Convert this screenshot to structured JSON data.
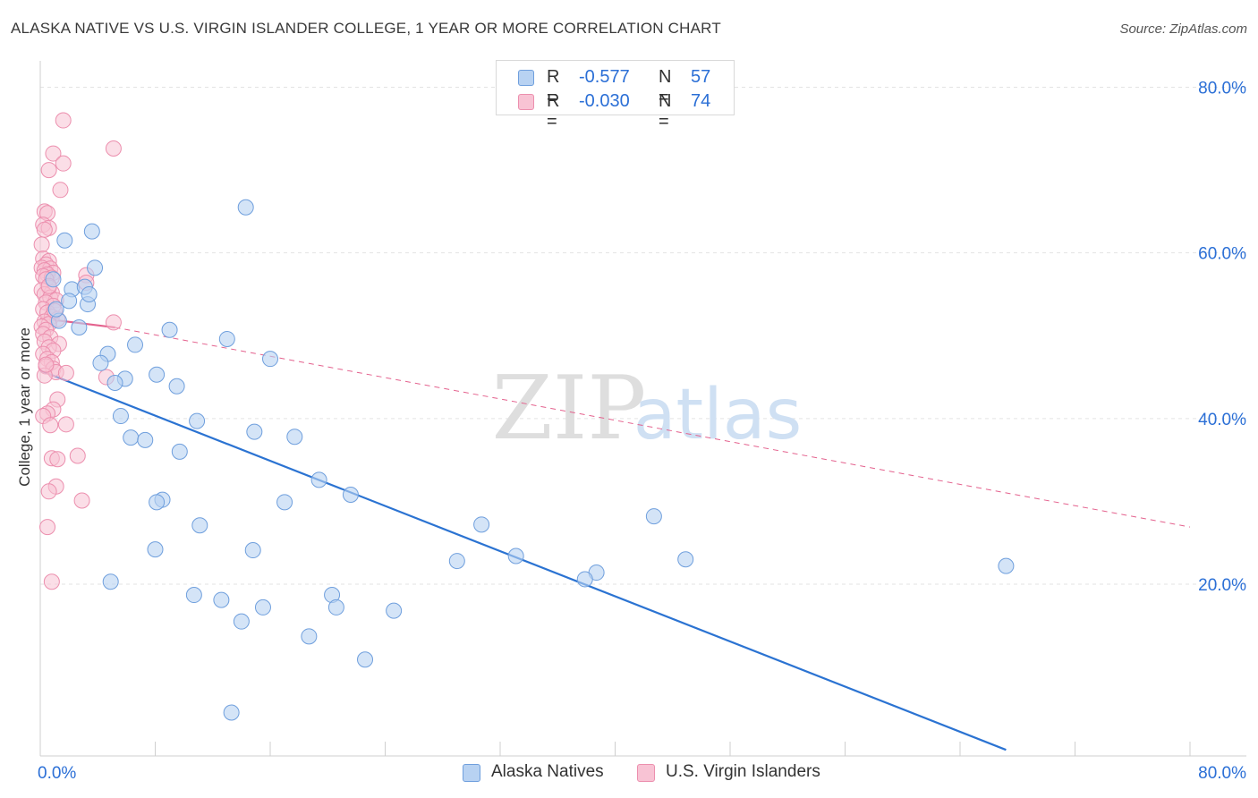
{
  "title": "ALASKA NATIVE VS U.S. VIRGIN ISLANDER COLLEGE, 1 YEAR OR MORE CORRELATION CHART",
  "source": "Source: ZipAtlas.com",
  "watermark": {
    "zip": "ZIP",
    "atlas": "atlas"
  },
  "legend": {
    "series1": {
      "r_label": "R =",
      "r_value": "-0.577",
      "n_label": "N =",
      "n_value": "57"
    },
    "series2": {
      "r_label": "R =",
      "r_value": "-0.030",
      "n_label": "N =",
      "n_value": "74"
    }
  },
  "bottom_legend": {
    "series1": "Alaska Natives",
    "series2": "U.S. Virgin Islanders"
  },
  "chart_data": {
    "type": "scatter",
    "title": "ALASKA NATIVE VS U.S. VIRGIN ISLANDER COLLEGE, 1 YEAR OR MORE CORRELATION CHART",
    "xlabel": "",
    "ylabel": "College, 1 year or more",
    "xlim": [
      0,
      80
    ],
    "ylim": [
      0,
      80
    ],
    "x_tick_labels": [
      "0.0%",
      "80.0%"
    ],
    "y_ticks": [
      20,
      40,
      60,
      80
    ],
    "y_tick_labels": [
      "20.0%",
      "40.0%",
      "60.0%",
      "80.0%"
    ],
    "grid": true,
    "colors": {
      "series1_fill": "#b8d2f2",
      "series1_stroke": "#6f9fdd",
      "series1_line": "#2b73d2",
      "series2_fill": "#f8c3d4",
      "series2_stroke": "#ec8fae",
      "series2_line": "#e4628e",
      "value_text": "#2b6fd6",
      "grid": "#e3e3e3"
    },
    "series": [
      {
        "name": "Alaska Natives",
        "R": -0.577,
        "N": 57,
        "trend": {
          "x": [
            0,
            67.2
          ],
          "y": [
            45.8,
            0
          ]
        },
        "points": [
          [
            14.3,
            65.5
          ],
          [
            3.6,
            62.6
          ],
          [
            1.7,
            61.5
          ],
          [
            3.8,
            58.2
          ],
          [
            2.2,
            55.6
          ],
          [
            3.1,
            55.9
          ],
          [
            3.3,
            53.8
          ],
          [
            2.0,
            54.2
          ],
          [
            1.3,
            51.8
          ],
          [
            2.7,
            51.0
          ],
          [
            9.0,
            50.7
          ],
          [
            13.0,
            49.6
          ],
          [
            6.6,
            48.9
          ],
          [
            4.7,
            47.8
          ],
          [
            16.0,
            47.2
          ],
          [
            4.2,
            46.7
          ],
          [
            8.1,
            45.3
          ],
          [
            5.9,
            44.8
          ],
          [
            5.2,
            44.3
          ],
          [
            9.5,
            43.9
          ],
          [
            5.6,
            40.3
          ],
          [
            10.9,
            39.7
          ],
          [
            14.9,
            38.4
          ],
          [
            17.7,
            37.8
          ],
          [
            6.3,
            37.7
          ],
          [
            7.3,
            37.4
          ],
          [
            9.7,
            36.0
          ],
          [
            19.4,
            32.6
          ],
          [
            21.6,
            30.8
          ],
          [
            8.5,
            30.2
          ],
          [
            8.1,
            29.9
          ],
          [
            17.0,
            29.9
          ],
          [
            42.7,
            28.2
          ],
          [
            30.7,
            27.2
          ],
          [
            11.1,
            27.1
          ],
          [
            8.0,
            24.2
          ],
          [
            14.8,
            24.1
          ],
          [
            33.1,
            23.4
          ],
          [
            29.0,
            22.8
          ],
          [
            44.9,
            23.0
          ],
          [
            67.2,
            22.2
          ],
          [
            38.7,
            21.4
          ],
          [
            37.9,
            20.6
          ],
          [
            4.9,
            20.3
          ],
          [
            10.7,
            18.7
          ],
          [
            20.3,
            18.7
          ],
          [
            12.6,
            18.1
          ],
          [
            15.5,
            17.2
          ],
          [
            20.6,
            17.2
          ],
          [
            24.6,
            16.8
          ],
          [
            14.0,
            15.5
          ],
          [
            18.7,
            13.7
          ],
          [
            22.6,
            10.9
          ],
          [
            13.3,
            4.5
          ],
          [
            3.4,
            55.0
          ],
          [
            0.9,
            56.8
          ],
          [
            1.1,
            53.2
          ]
        ]
      },
      {
        "name": "U.S. Virgin Islanders",
        "R": -0.03,
        "N": 74,
        "trend_solid": {
          "x": [
            0,
            5.2
          ],
          "y": [
            52.1,
            51.0
          ]
        },
        "trend_dashed": {
          "x": [
            5.2,
            80
          ],
          "y": [
            51.0,
            26.9
          ]
        },
        "points": [
          [
            1.6,
            76.0
          ],
          [
            5.1,
            72.6
          ],
          [
            0.9,
            72.0
          ],
          [
            1.6,
            70.8
          ],
          [
            0.6,
            70.0
          ],
          [
            1.4,
            67.6
          ],
          [
            0.3,
            65.0
          ],
          [
            0.5,
            64.8
          ],
          [
            0.2,
            63.4
          ],
          [
            0.6,
            63.0
          ],
          [
            0.3,
            62.8
          ],
          [
            0.1,
            61.0
          ],
          [
            0.2,
            59.3
          ],
          [
            0.6,
            59.0
          ],
          [
            0.4,
            58.6
          ],
          [
            0.1,
            58.2
          ],
          [
            0.7,
            58.1
          ],
          [
            0.3,
            57.9
          ],
          [
            0.9,
            57.6
          ],
          [
            0.5,
            57.4
          ],
          [
            0.2,
            57.2
          ],
          [
            0.8,
            57.0
          ],
          [
            0.4,
            56.8
          ],
          [
            3.2,
            57.3
          ],
          [
            3.2,
            56.4
          ],
          [
            0.6,
            55.8
          ],
          [
            0.1,
            55.5
          ],
          [
            0.8,
            55.2
          ],
          [
            0.3,
            55.0
          ],
          [
            0.7,
            54.6
          ],
          [
            1.1,
            54.3
          ],
          [
            0.4,
            54.0
          ],
          [
            0.9,
            53.6
          ],
          [
            0.2,
            53.2
          ],
          [
            0.5,
            52.8
          ],
          [
            0.8,
            52.3
          ],
          [
            1.2,
            52.0
          ],
          [
            0.3,
            51.7
          ],
          [
            0.6,
            51.4
          ],
          [
            5.1,
            51.6
          ],
          [
            0.1,
            51.1
          ],
          [
            0.4,
            50.7
          ],
          [
            0.2,
            50.2
          ],
          [
            0.7,
            49.8
          ],
          [
            0.3,
            49.3
          ],
          [
            1.3,
            49.0
          ],
          [
            0.6,
            48.6
          ],
          [
            0.9,
            48.2
          ],
          [
            0.2,
            47.8
          ],
          [
            0.5,
            47.2
          ],
          [
            0.8,
            46.8
          ],
          [
            0.4,
            46.3
          ],
          [
            0.9,
            46.0
          ],
          [
            1.1,
            45.6
          ],
          [
            1.8,
            45.5
          ],
          [
            0.3,
            45.2
          ],
          [
            4.6,
            45.0
          ],
          [
            1.2,
            42.3
          ],
          [
            0.9,
            41.1
          ],
          [
            0.5,
            40.6
          ],
          [
            0.2,
            40.3
          ],
          [
            0.7,
            39.2
          ],
          [
            1.8,
            39.3
          ],
          [
            2.6,
            35.5
          ],
          [
            0.8,
            35.2
          ],
          [
            1.2,
            35.1
          ],
          [
            1.1,
            31.8
          ],
          [
            0.6,
            31.2
          ],
          [
            2.9,
            30.1
          ],
          [
            0.5,
            26.9
          ],
          [
            0.8,
            20.3
          ],
          [
            0.4,
            46.5
          ],
          [
            0.6,
            56.0
          ],
          [
            1.0,
            53.0
          ]
        ]
      }
    ]
  }
}
